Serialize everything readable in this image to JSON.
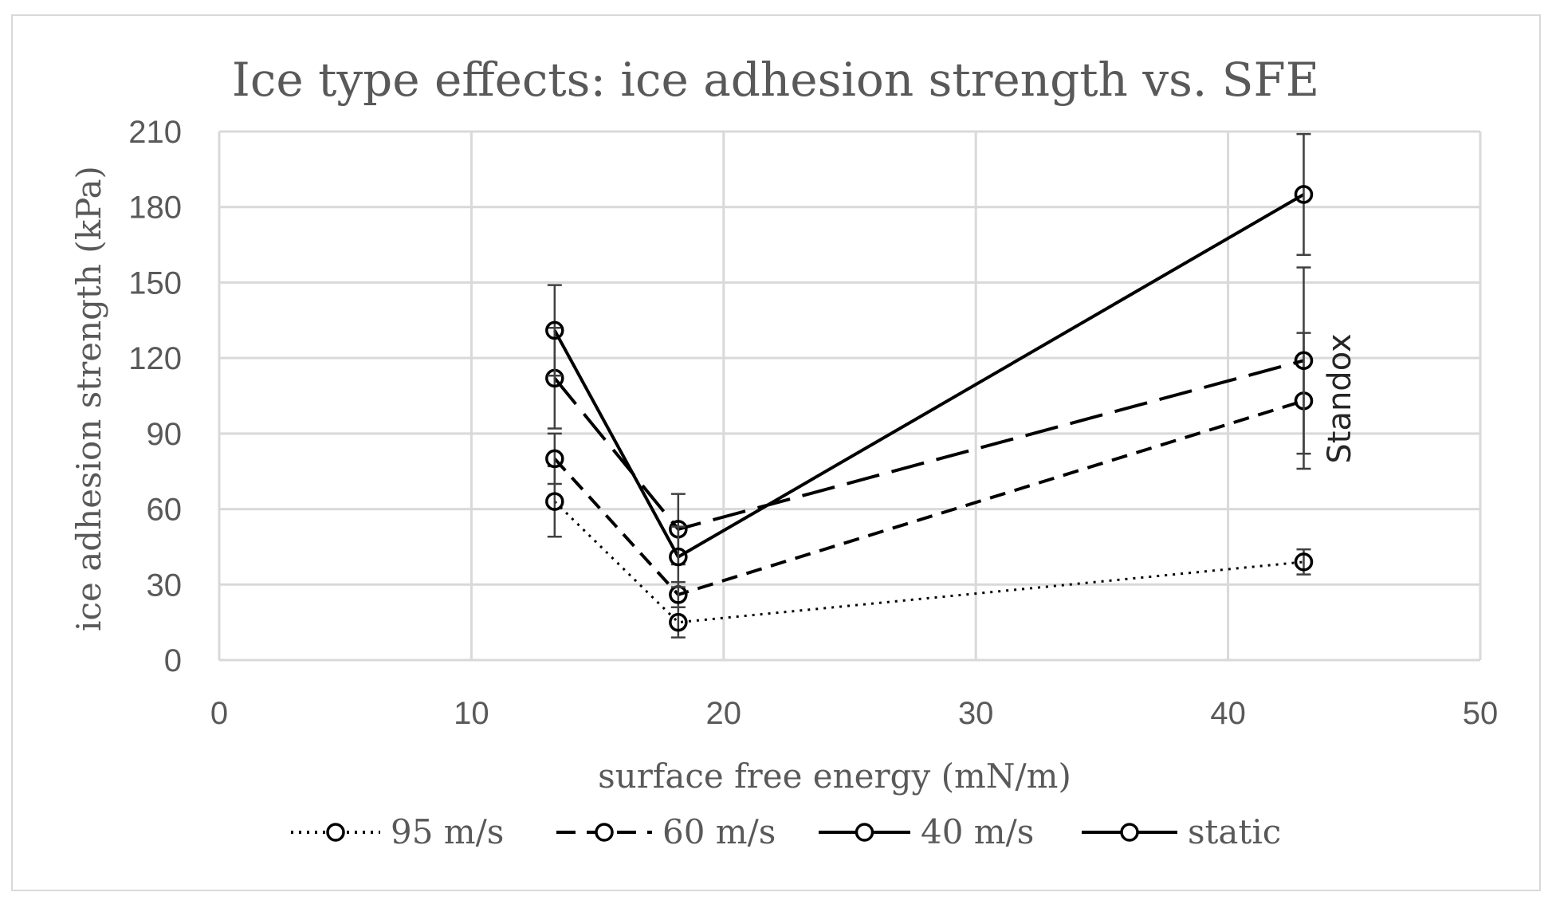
{
  "chart_data": {
    "type": "line",
    "title": "Ice type effects: ice adhesion strength vs. SFE",
    "xlabel": "surface free energy (mN/m)",
    "ylabel": "ice adhesion strength (kPa)",
    "xlim": [
      0,
      50
    ],
    "ylim": [
      0,
      210
    ],
    "x_ticks": [
      "0",
      "10",
      "20",
      "30",
      "40",
      "50"
    ],
    "y_ticks": [
      "0",
      "30",
      "60",
      "90",
      "120",
      "150",
      "180",
      "210"
    ],
    "grid": true,
    "legend_position": "bottom",
    "annotation": "Standox",
    "series": [
      {
        "name": "95 m/s",
        "line_style": "dotted",
        "x": [
          13.3,
          18.2,
          43
        ],
        "y": [
          63,
          15,
          39
        ],
        "error": [
          14,
          6,
          5
        ]
      },
      {
        "name": "60 m/s",
        "line_style": "short-dash",
        "x": [
          13.3,
          18.2,
          43
        ],
        "y": [
          80,
          26,
          103
        ],
        "error": [
          10,
          5,
          27
        ]
      },
      {
        "name": "40 m/s",
        "line_style": "long-dash",
        "x": [
          13.3,
          18.2,
          43
        ],
        "y": [
          112,
          52,
          119
        ],
        "error": [
          20,
          14,
          37
        ]
      },
      {
        "name": "static",
        "line_style": "solid",
        "x": [
          13.3,
          18.2,
          43
        ],
        "y": [
          131,
          41,
          185
        ],
        "error": [
          18,
          12,
          24
        ]
      }
    ]
  }
}
